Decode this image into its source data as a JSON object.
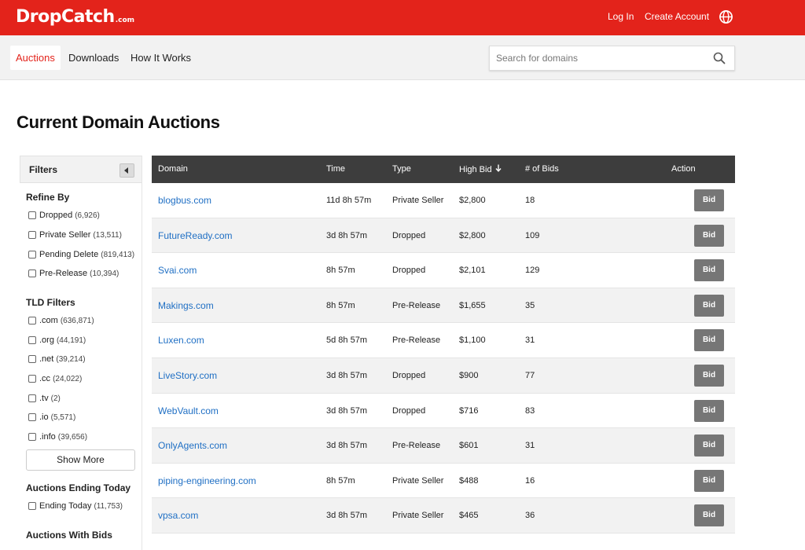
{
  "header": {
    "logo_main": "DropCatch",
    "logo_suffix": ".com",
    "login_label": "Log In",
    "create_account_label": "Create Account",
    "brand_color": "#e3231b"
  },
  "nav": {
    "tabs": [
      {
        "label": "Auctions",
        "active": true
      },
      {
        "label": "Downloads",
        "active": false
      },
      {
        "label": "How It Works",
        "active": false
      }
    ],
    "search_placeholder": "Search for domains"
  },
  "page_title": "Current Domain Auctions",
  "sidebar": {
    "filters_label": "Filters",
    "refine_by_title": "Refine By",
    "refine_by": [
      {
        "label": "Dropped",
        "count": "(6,926)"
      },
      {
        "label": "Private Seller",
        "count": "(13,511)"
      },
      {
        "label": "Pending Delete",
        "count": "(819,413)"
      },
      {
        "label": "Pre-Release",
        "count": "(10,394)"
      }
    ],
    "tld_title": "TLD Filters",
    "tld": [
      {
        "label": ".com",
        "count": "(636,871)"
      },
      {
        "label": ".org",
        "count": "(44,191)"
      },
      {
        "label": ".net",
        "count": "(39,214)"
      },
      {
        "label": ".cc",
        "count": "(24,022)"
      },
      {
        "label": ".tv",
        "count": "(2)"
      },
      {
        "label": ".io",
        "count": "(5,571)"
      },
      {
        "label": ".info",
        "count": "(39,656)"
      }
    ],
    "show_more_label": "Show More",
    "ending_today_title": "Auctions Ending Today",
    "ending_today": [
      {
        "label": "Ending Today",
        "count": "(11,753)"
      }
    ],
    "with_bids_title": "Auctions With Bids"
  },
  "table": {
    "columns": {
      "domain": "Domain",
      "time": "Time",
      "type": "Type",
      "high_bid": "High Bid",
      "bids": "# of Bids",
      "action": "Action"
    },
    "bid_label": "Bid",
    "rows": [
      {
        "domain": "blogbus.com",
        "time": "11d 8h 57m",
        "type": "Private Seller",
        "high_bid": "$2,800",
        "bids": "18"
      },
      {
        "domain": "FutureReady.com",
        "time": "3d 8h 57m",
        "type": "Dropped",
        "high_bid": "$2,800",
        "bids": "109"
      },
      {
        "domain": "Svai.com",
        "time": "8h 57m",
        "type": "Dropped",
        "high_bid": "$2,101",
        "bids": "129"
      },
      {
        "domain": "Makings.com",
        "time": "8h 57m",
        "type": "Pre-Release",
        "high_bid": "$1,655",
        "bids": "35"
      },
      {
        "domain": "Luxen.com",
        "time": "5d 8h 57m",
        "type": "Pre-Release",
        "high_bid": "$1,100",
        "bids": "31"
      },
      {
        "domain": "LiveStory.com",
        "time": "3d 8h 57m",
        "type": "Dropped",
        "high_bid": "$900",
        "bids": "77"
      },
      {
        "domain": "WebVault.com",
        "time": "3d 8h 57m",
        "type": "Dropped",
        "high_bid": "$716",
        "bids": "83"
      },
      {
        "domain": "OnlyAgents.com",
        "time": "3d 8h 57m",
        "type": "Pre-Release",
        "high_bid": "$601",
        "bids": "31"
      },
      {
        "domain": "piping-engineering.com",
        "time": "8h 57m",
        "type": "Private Seller",
        "high_bid": "$488",
        "bids": "16"
      },
      {
        "domain": "vpsa.com",
        "time": "3d 8h 57m",
        "type": "Private Seller",
        "high_bid": "$465",
        "bids": "36"
      }
    ]
  }
}
